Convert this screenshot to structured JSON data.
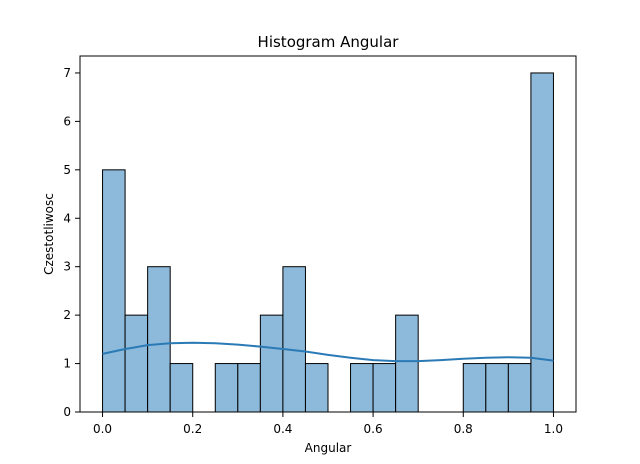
{
  "chart_data": {
    "type": "bar",
    "title": "Histogram Angular",
    "xlabel": "Angular",
    "ylabel": "Czestotliwosc",
    "xlim": [
      -0.05,
      1.05
    ],
    "ylim": [
      0,
      7.35
    ],
    "x_ticks": [
      "0.0",
      "0.2",
      "0.4",
      "0.6",
      "0.8",
      "1.0"
    ],
    "y_ticks": [
      "0",
      "1",
      "2",
      "3",
      "4",
      "5",
      "6",
      "7"
    ],
    "bins": [
      [
        0.0,
        0.05
      ],
      [
        0.05,
        0.1
      ],
      [
        0.1,
        0.15
      ],
      [
        0.15,
        0.2
      ],
      [
        0.2,
        0.25
      ],
      [
        0.25,
        0.3
      ],
      [
        0.3,
        0.35
      ],
      [
        0.35,
        0.4
      ],
      [
        0.4,
        0.45
      ],
      [
        0.45,
        0.5
      ],
      [
        0.5,
        0.55
      ],
      [
        0.55,
        0.6
      ],
      [
        0.6,
        0.65
      ],
      [
        0.65,
        0.7
      ],
      [
        0.7,
        0.75
      ],
      [
        0.75,
        0.8
      ],
      [
        0.8,
        0.85
      ],
      [
        0.85,
        0.9
      ],
      [
        0.9,
        0.95
      ],
      [
        0.95,
        1.0
      ]
    ],
    "values": [
      5,
      2,
      3,
      1,
      0,
      1,
      1,
      2,
      3,
      1,
      0,
      1,
      1,
      2,
      0,
      0,
      1,
      1,
      1,
      7
    ],
    "kde": {
      "x": [
        0.0,
        0.05,
        0.1,
        0.15,
        0.2,
        0.25,
        0.3,
        0.35,
        0.4,
        0.45,
        0.5,
        0.55,
        0.6,
        0.65,
        0.7,
        0.75,
        0.8,
        0.85,
        0.9,
        0.95,
        1.0
      ],
      "y": [
        1.2,
        1.3,
        1.38,
        1.42,
        1.43,
        1.42,
        1.39,
        1.35,
        1.3,
        1.25,
        1.18,
        1.12,
        1.07,
        1.05,
        1.05,
        1.07,
        1.1,
        1.12,
        1.13,
        1.12,
        1.06
      ]
    },
    "grid": false,
    "colors": {
      "bar_fill": "#8db9da",
      "bar_edge": "#000000",
      "kde_line": "#2a7ab6",
      "axis": "#000000",
      "background": "#ffffff"
    }
  }
}
